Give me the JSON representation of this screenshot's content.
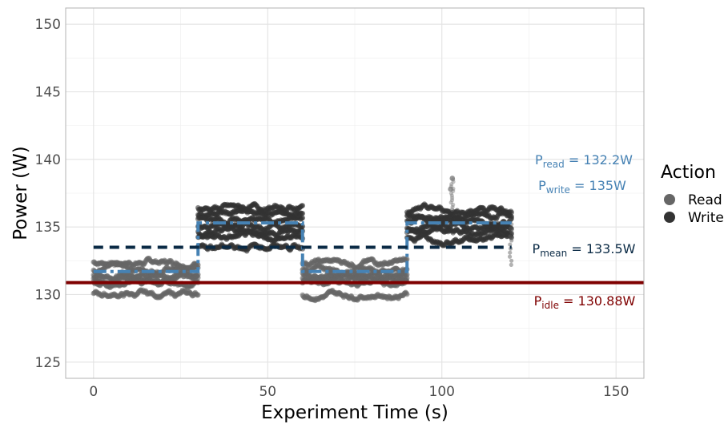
{
  "chart_data": {
    "type": "scatter",
    "xlabel": "Experiment Time (s)",
    "ylabel": "Power (W)",
    "xlim": [
      -8,
      158
    ],
    "ylim": [
      123.8,
      151.2
    ],
    "x_ticks": [
      0,
      50,
      100,
      150
    ],
    "y_ticks": [
      125,
      130,
      135,
      140,
      145,
      150
    ],
    "grid": true,
    "legend": {
      "title": "Action",
      "placement": "right",
      "entries": [
        {
          "label": "Read",
          "color": "#666666"
        },
        {
          "label": "Write",
          "color": "#333333"
        }
      ]
    },
    "series": [
      {
        "name": "Read",
        "color": "#666666",
        "segments": [
          {
            "x_start": 0,
            "x_end": 30,
            "levels": [
              132.4,
              131.9,
              131.5,
              131.2,
              130.9,
              130.0
            ]
          },
          {
            "x_start": 60,
            "x_end": 90,
            "levels": [
              132.4,
              131.9,
              131.5,
              131.2,
              130.9,
              130.0
            ]
          }
        ],
        "mean": 132.2
      },
      {
        "name": "Write",
        "color": "#333333",
        "segments": [
          {
            "x_start": 30,
            "x_end": 60,
            "levels": [
              136.4,
              136.0,
              135.5,
              135.1,
              134.7,
              134.2,
              133.6
            ]
          },
          {
            "x_start": 90,
            "x_end": 120,
            "levels": [
              136.2,
              135.8,
              135.4,
              135.0,
              134.6,
              134.2
            ]
          }
        ],
        "spikes": [
          {
            "x": 103,
            "y": 138.6
          },
          {
            "x": 102.5,
            "y": 137.8
          }
        ],
        "mean": 135
      }
    ],
    "reference_lines": {
      "idle": {
        "value": 130.88,
        "color": "#7f0000",
        "style": "solid"
      },
      "mean": {
        "value": 133.5,
        "color": "#0a2a45",
        "style": "dashed",
        "x_range": [
          0,
          120
        ]
      },
      "phase_mean": {
        "color": "#4682b4",
        "style": "dashdot",
        "x_range": [
          0,
          120
        ],
        "steps": [
          {
            "x_start": 0,
            "x_end": 30,
            "value": 131.7
          },
          {
            "x_start": 30,
            "x_end": 60,
            "value": 135.3
          },
          {
            "x_start": 60,
            "x_end": 90,
            "value": 131.7
          },
          {
            "x_start": 90,
            "x_end": 120,
            "value": 135.3
          }
        ]
      }
    },
    "annotations": [
      {
        "key": "read",
        "base": "P",
        "sub": "read",
        "text": " = 132.2W",
        "color": "#4682b4"
      },
      {
        "key": "write",
        "base": "P",
        "sub": "write",
        "text": " = 135W",
        "color": "#4682b4"
      },
      {
        "key": "mean",
        "base": "P",
        "sub": "mean",
        "text": " = 133.5W",
        "color": "#0a2a45"
      },
      {
        "key": "idle",
        "base": "P",
        "sub": "idle",
        "text": " = 130.88W",
        "color": "#7f0000"
      }
    ]
  }
}
